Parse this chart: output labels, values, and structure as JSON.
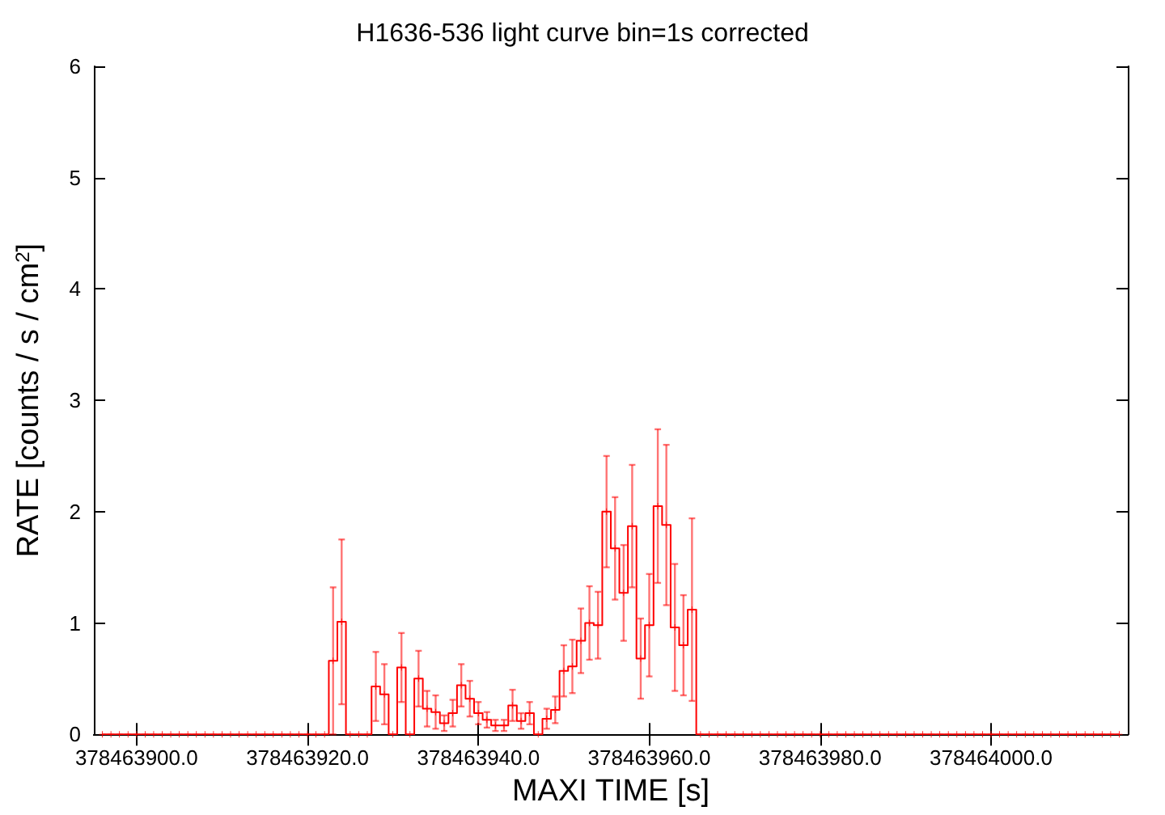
{
  "chart_data": {
    "type": "step",
    "title": "H1636-536 light curve bin=1s corrected",
    "xlabel": "MAXI TIME [s]",
    "ylabel": "RATE [counts / s / cm$^{2}$]",
    "xlim": [
      378463895,
      378464016
    ],
    "ylim": [
      0,
      6
    ],
    "xticks": [
      {
        "value": 378463900,
        "label": "378463900.0"
      },
      {
        "value": 378463920,
        "label": "378463920.0"
      },
      {
        "value": 378463940,
        "label": "378463940.0"
      },
      {
        "value": 378463960,
        "label": "378463960.0"
      },
      {
        "value": 378463980,
        "label": "378463980.0"
      },
      {
        "value": 378464000,
        "label": "378464000.0"
      }
    ],
    "yticks": [
      0,
      1,
      2,
      3,
      4,
      5,
      6
    ],
    "grid": false,
    "marker": "cross",
    "line_style": "solid",
    "series": [
      {
        "color": "#ff0000",
        "x": [
          378463896,
          378463897,
          378463898,
          378463899,
          378463900,
          378463901,
          378463902,
          378463903,
          378463904,
          378463905,
          378463906,
          378463907,
          378463908,
          378463909,
          378463910,
          378463911,
          378463912,
          378463913,
          378463914,
          378463915,
          378463916,
          378463917,
          378463918,
          378463919,
          378463920,
          378463921,
          378463922,
          378463923,
          378463924,
          378463925,
          378463926,
          378463927,
          378463928,
          378463929,
          378463930,
          378463931,
          378463932,
          378463933,
          378463934,
          378463935,
          378463936,
          378463937,
          378463938,
          378463939,
          378463940,
          378463941,
          378463942,
          378463943,
          378463944,
          378463945,
          378463946,
          378463947,
          378463948,
          378463949,
          378463950,
          378463951,
          378463952,
          378463953,
          378463954,
          378463955,
          378463956,
          378463957,
          378463958,
          378463959,
          378463960,
          378463961,
          378463962,
          378463963,
          378463964,
          378463965,
          378463966,
          378463967,
          378463968,
          378463969,
          378463970,
          378463971,
          378463972,
          378463973,
          378463974,
          378463975,
          378463976,
          378463977,
          378463978,
          378463979,
          378463980,
          378463981,
          378463982,
          378463983,
          378463984,
          378463985,
          378463986,
          378463987,
          378463988,
          378463989,
          378463990,
          378463991,
          378463992,
          378463993,
          378463994,
          378463995,
          378463996,
          378463997,
          378463998,
          378463999,
          378464000,
          378464001,
          378464002,
          378464003,
          378464004,
          378464005,
          378464006,
          378464007,
          378464008,
          378464009,
          378464010,
          378464011,
          378464012,
          378464013,
          378464014,
          378464015
        ],
        "values": [
          0,
          0,
          0,
          0,
          0,
          0,
          0,
          0,
          0,
          0,
          0,
          0,
          0,
          0,
          0,
          0,
          0,
          0,
          0,
          0,
          0,
          0,
          0,
          0,
          0,
          0,
          0,
          0.66,
          1.01,
          0,
          0,
          0,
          0.43,
          0.36,
          0,
          0.6,
          0,
          0.5,
          0.23,
          0.2,
          0.1,
          0.19,
          0.44,
          0.32,
          0.19,
          0.13,
          0.08,
          0.08,
          0.26,
          0.12,
          0.19,
          0,
          0.14,
          0.22,
          0.57,
          0.61,
          0.84,
          1.0,
          0.98,
          2.0,
          1.67,
          1.27,
          1.87,
          0.68,
          0.98,
          2.05,
          1.88,
          0.96,
          0.8,
          1.12,
          0,
          0,
          0,
          0,
          0,
          0,
          0,
          0,
          0,
          0,
          0,
          0,
          0,
          0,
          0,
          0,
          0,
          0,
          0,
          0,
          0,
          0,
          0,
          0,
          0,
          0,
          0,
          0,
          0,
          0,
          0,
          0,
          0,
          0,
          0,
          0,
          0,
          0,
          0,
          0,
          0,
          0,
          0,
          0,
          0,
          0,
          0,
          0,
          0,
          0
        ],
        "errors": [
          0,
          0,
          0,
          0,
          0,
          0,
          0,
          0,
          0,
          0,
          0,
          0,
          0,
          0,
          0,
          0,
          0,
          0,
          0,
          0,
          0,
          0,
          0,
          0,
          0,
          0,
          0,
          0.66,
          0.74,
          0,
          0,
          0,
          0.31,
          0.27,
          0,
          0.31,
          0,
          0.25,
          0.16,
          0.15,
          0.07,
          0.12,
          0.19,
          0.16,
          0.1,
          0.07,
          0.05,
          0.05,
          0.14,
          0.07,
          0.1,
          0,
          0.09,
          0.12,
          0.23,
          0.24,
          0.29,
          0.33,
          0.3,
          0.5,
          0.46,
          0.43,
          0.55,
          0.36,
          0.46,
          0.69,
          0.72,
          0.57,
          0.45,
          0.82,
          0,
          0,
          0,
          0,
          0,
          0,
          0,
          0,
          0,
          0,
          0,
          0,
          0,
          0,
          0,
          0,
          0,
          0,
          0,
          0,
          0,
          0,
          0,
          0,
          0,
          0,
          0,
          0,
          0,
          0,
          0,
          0,
          0,
          0,
          0,
          0,
          0,
          0,
          0,
          0,
          0,
          0,
          0,
          0,
          0,
          0,
          0,
          0,
          0,
          0
        ]
      }
    ]
  }
}
